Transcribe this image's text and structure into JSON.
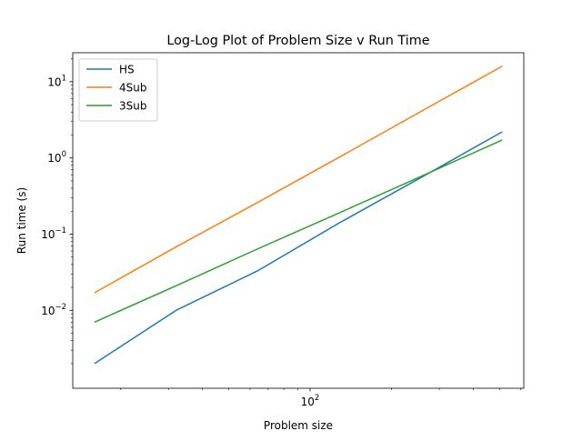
{
  "chart_data": {
    "type": "line",
    "title": "Log-Log Plot of Problem Size v Run Time",
    "xlabel": "Problem size",
    "ylabel": "Run time (s)",
    "xscale": "log",
    "yscale": "log",
    "xlim": [
      13.3,
      615
    ],
    "ylim": [
      0.00095,
      24
    ],
    "x": [
      16,
      32,
      64,
      128,
      256,
      512
    ],
    "series": [
      {
        "name": "HS",
        "color": "#1f77b4",
        "values": [
          0.002,
          0.01,
          0.033,
          0.14,
          0.55,
          2.2
        ]
      },
      {
        "name": "4Sub",
        "color": "#ff7f0e",
        "values": [
          0.017,
          0.068,
          0.26,
          1.02,
          4.05,
          16.0
        ]
      },
      {
        "name": "3Sub",
        "color": "#2ca02c",
        "values": [
          0.007,
          0.021,
          0.064,
          0.19,
          0.57,
          1.72
        ]
      }
    ],
    "x_major_ticks": [
      {
        "value": 100,
        "base": "10",
        "exp": "2"
      }
    ],
    "y_major_ticks": [
      {
        "value": 0.01,
        "base": "10",
        "exp": "−2"
      },
      {
        "value": 0.1,
        "base": "10",
        "exp": "−1"
      },
      {
        "value": 1,
        "base": "10",
        "exp": "0"
      },
      {
        "value": 10,
        "base": "10",
        "exp": "1"
      }
    ],
    "grid": false,
    "legend_position": "top-left"
  }
}
